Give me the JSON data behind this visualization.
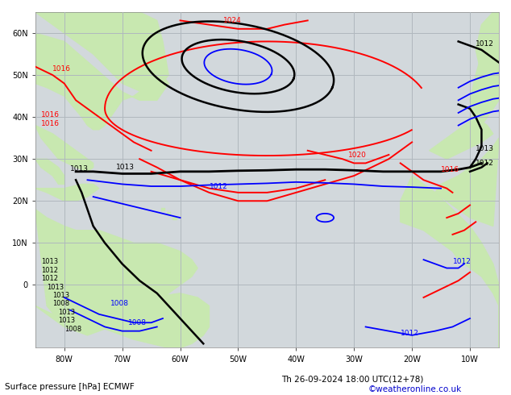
{
  "title_left": "Surface pressure [hPa] ECMWF",
  "title_right": "Th 26-09-2024 18:00 UTC(12+78)",
  "credit": "©weatheronline.co.uk",
  "ocean_color": "#d2d8dc",
  "land_color": "#c8e8b0",
  "land_color2": "#b0c890",
  "grid_color": "#b0b8be",
  "figsize": [
    6.34,
    4.9
  ],
  "dpi": 100,
  "xlim": [
    -85,
    -5
  ],
  "ylim": [
    -15,
    65
  ],
  "xticks": [
    -80,
    -70,
    -60,
    -50,
    -40,
    -30,
    -20,
    -10
  ],
  "yticks": [
    0,
    10,
    20,
    30,
    40,
    50,
    60
  ],
  "xlabel_labels": [
    "80W",
    "70W",
    "60W",
    "50W",
    "40W",
    "30W",
    "20W",
    "10W"
  ],
  "ylabel_labels": [
    "0",
    "10N",
    "20N",
    "30N",
    "40N",
    "50N",
    "60N"
  ]
}
